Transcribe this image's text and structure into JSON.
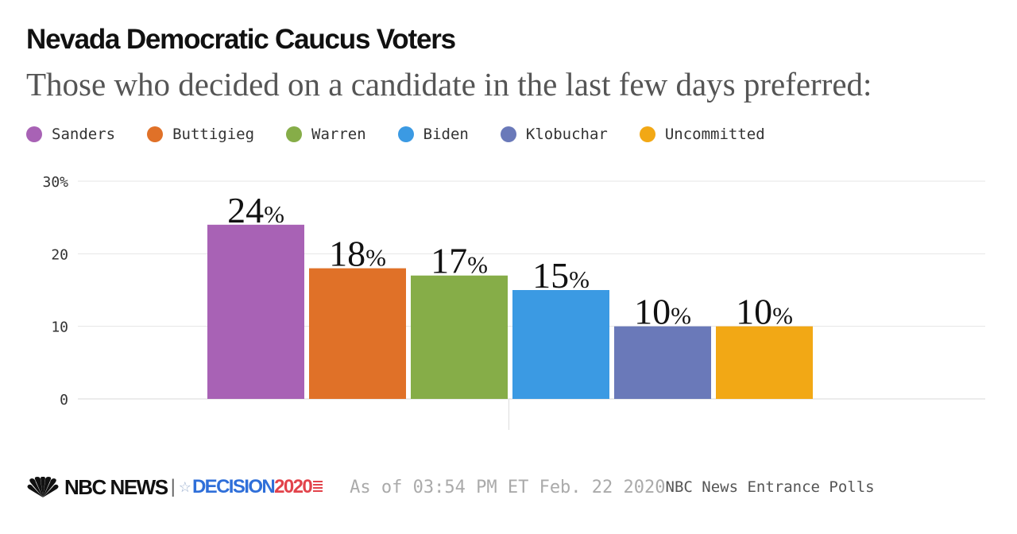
{
  "chart_data": {
    "type": "bar",
    "title": "Nevada Democratic Caucus Voters",
    "subtitle": "Those who decided on a candidate in the last few days preferred:",
    "categories": [
      "Sanders",
      "Buttigieg",
      "Warren",
      "Biden",
      "Klobuchar",
      "Uncommitted"
    ],
    "values": [
      24,
      18,
      17,
      15,
      10,
      10
    ],
    "colors": [
      "#a862b5",
      "#e07128",
      "#86ad48",
      "#3b9ae3",
      "#6a79b9",
      "#f2a815"
    ],
    "value_suffix": "%",
    "ylim": [
      0,
      30
    ],
    "yticks": [
      0,
      10,
      20,
      30
    ],
    "ytick_labels": [
      "0",
      "10",
      "20",
      "30%"
    ],
    "grid": true,
    "legend_position": "top-left",
    "xlabel": "",
    "ylabel": ""
  },
  "footer": {
    "brand": "NBC NEWS",
    "separator": "|",
    "decision_text": "DECISION",
    "decision_year": "2020",
    "as_of": "As of 03:54 PM ET Feb. 22 2020",
    "source": "NBC News Entrance Polls"
  }
}
